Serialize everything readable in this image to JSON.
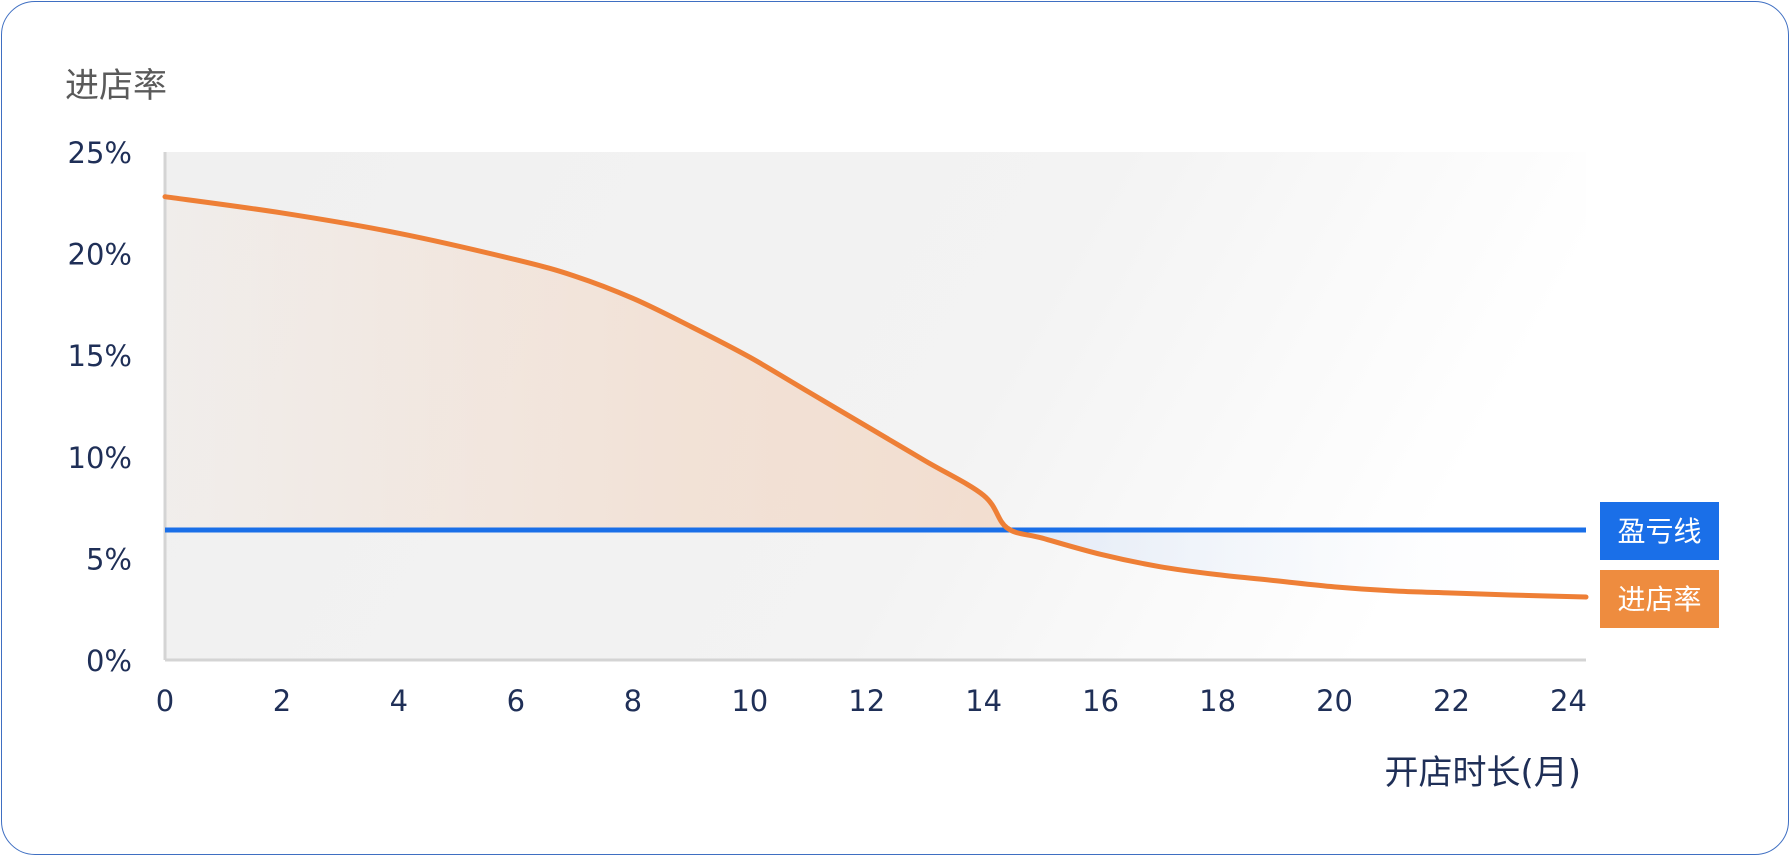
{
  "chart_data": {
    "type": "line",
    "ylabel": "进店率",
    "xlabel": "开店时长(月)",
    "x_ticks": [
      0,
      2,
      4,
      6,
      8,
      10,
      12,
      14,
      16,
      18,
      20,
      22,
      24
    ],
    "y_ticks": [
      "0%",
      "5%",
      "10%",
      "15%",
      "20%",
      "25%"
    ],
    "xlim": [
      0,
      24.3
    ],
    "ylim": [
      0,
      25
    ],
    "series": [
      {
        "name": "进店率",
        "color": "#ee7f36",
        "x": [
          0,
          2,
          4,
          6,
          7,
          8,
          9,
          10,
          11,
          12,
          13,
          14,
          14.4,
          15,
          16,
          17,
          18,
          19,
          20,
          21,
          22,
          23,
          24.3
        ],
        "y": [
          22.8,
          22.0,
          21.0,
          19.7,
          18.9,
          17.8,
          16.4,
          14.9,
          13.2,
          11.5,
          9.8,
          8.1,
          6.5,
          6.0,
          5.2,
          4.6,
          4.2,
          3.9,
          3.6,
          3.4,
          3.3,
          3.2,
          3.1
        ]
      },
      {
        "name": "盈亏线",
        "color": "#1a6fe8",
        "x": [
          0,
          24.3
        ],
        "y": [
          6.4,
          6.4
        ]
      }
    ],
    "grid": false,
    "legend_position": "right",
    "legend": [
      {
        "label": "盈亏线",
        "color": "#1a6fe8"
      },
      {
        "label": "进店率",
        "color": "#ee8c3f"
      }
    ]
  }
}
